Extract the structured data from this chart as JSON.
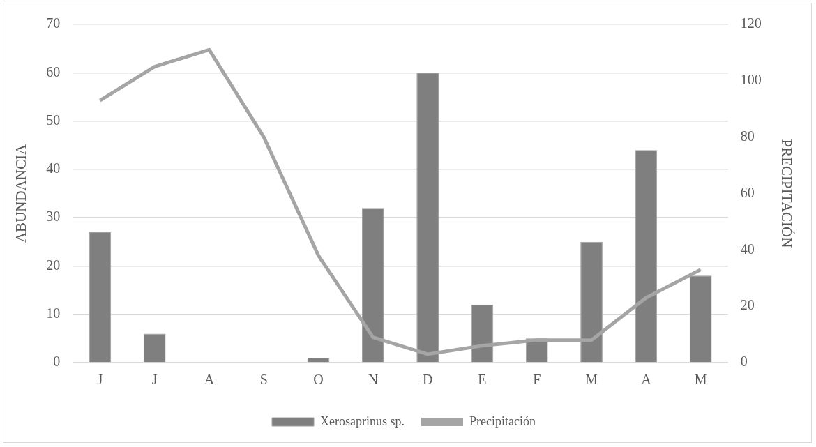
{
  "chart_data": {
    "type": "bar",
    "categories": [
      "J",
      "J",
      "A",
      "S",
      "O",
      "N",
      "D",
      "E",
      "F",
      "M",
      "A",
      "M"
    ],
    "series": [
      {
        "name": "Xerosaprinus sp.",
        "color": "#7f7f7f",
        "values": [
          27,
          6,
          0,
          0,
          1,
          32,
          60,
          12,
          5,
          25,
          44,
          18
        ]
      },
      {
        "name": "Precipitación",
        "type": "line",
        "axis": "y2",
        "color": "#a5a5a5",
        "values": [
          93,
          105,
          111,
          80,
          38,
          9,
          3,
          6,
          8,
          8,
          23,
          33
        ]
      }
    ],
    "ylabel": "ABUNDANCIA",
    "y2label": "PRECIPITACIÓN",
    "ylim": [
      0,
      70
    ],
    "yticks": [
      0,
      10,
      20,
      30,
      40,
      50,
      60,
      70
    ],
    "y2lim": [
      0,
      120
    ],
    "y2ticks": [
      0,
      20,
      40,
      60,
      80,
      100,
      120
    ],
    "grid": "y",
    "legend": "bottom",
    "marker": "none",
    "line_style": "solid"
  }
}
